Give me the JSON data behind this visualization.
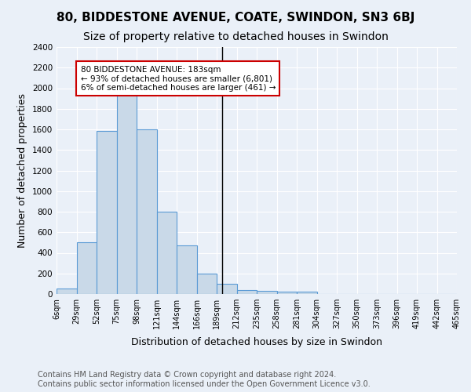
{
  "title1": "80, BIDDESTONE AVENUE, COATE, SWINDON, SN3 6BJ",
  "title2": "Size of property relative to detached houses in Swindon",
  "xlabel": "Distribution of detached houses by size in Swindon",
  "ylabel": "Number of detached properties",
  "footnote": "Contains HM Land Registry data © Crown copyright and database right 2024.\nContains public sector information licensed under the Open Government Licence v3.0.",
  "bin_labels": [
    "6sqm",
    "29sqm",
    "52sqm",
    "75sqm",
    "98sqm",
    "121sqm",
    "144sqm",
    "166sqm",
    "189sqm",
    "212sqm",
    "235sqm",
    "258sqm",
    "281sqm",
    "304sqm",
    "327sqm",
    "350sqm",
    "373sqm",
    "396sqm",
    "419sqm",
    "442sqm",
    "465sqm"
  ],
  "bar_values": [
    55,
    500,
    1585,
    1950,
    1600,
    800,
    475,
    195,
    100,
    35,
    30,
    20,
    20,
    0,
    0,
    0,
    0,
    0,
    0,
    0
  ],
  "bar_color": "#c9d9e8",
  "bar_edge_color": "#5b9bd5",
  "vline_x_index": 8.26,
  "annotation_text": "80 BIDDESTONE AVENUE: 183sqm\n← 93% of detached houses are smaller (6,801)\n6% of semi-detached houses are larger (461) →",
  "annotation_box_color": "#ffffff",
  "annotation_border_color": "#cc0000",
  "ylim": [
    0,
    2400
  ],
  "yticks": [
    0,
    200,
    400,
    600,
    800,
    1000,
    1200,
    1400,
    1600,
    1800,
    2000,
    2200,
    2400
  ],
  "background_color": "#eaf0f8",
  "plot_bg_color": "#eaf0f8",
  "grid_color": "#ffffff",
  "title1_fontsize": 11,
  "title2_fontsize": 10,
  "xlabel_fontsize": 9,
  "ylabel_fontsize": 9,
  "footnote_fontsize": 7
}
